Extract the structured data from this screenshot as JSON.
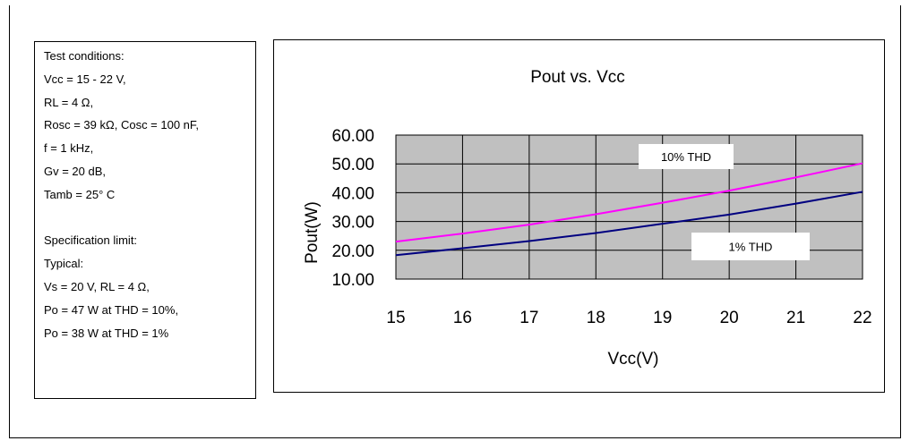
{
  "conditions": {
    "lines": [
      "Test conditions:",
      "Vcc = 15 - 22 V,",
      "RL = 4 Ω,",
      "Rosc = 39 kΩ, Cosc = 100 nF,",
      "f = 1 kHz,",
      "Gv = 20 dB,",
      "Tamb = 25° C",
      "",
      "Specification limit:",
      "Typical:",
      "Vs = 20 V, RL = 4 Ω,",
      "Po = 47 W at THD = 10%,",
      "Po = 38 W at THD = 1%"
    ]
  },
  "chart_data": {
    "type": "line",
    "title": "Pout vs. Vcc",
    "xlabel": "Vcc(V)",
    "ylabel": "Pout(W)",
    "xlim": [
      15,
      22
    ],
    "ylim": [
      10,
      60
    ],
    "x_ticks": [
      "15",
      "16",
      "17",
      "18",
      "19",
      "20",
      "21",
      "22"
    ],
    "y_ticks": [
      "10.00",
      "20.00",
      "30.00",
      "40.00",
      "50.00",
      "60.00"
    ],
    "grid": true,
    "plot_background": "#c0c0c0",
    "x": [
      15,
      16,
      17,
      18,
      19,
      20,
      21,
      22
    ],
    "series": [
      {
        "name": "10% THD",
        "color": "#ff00ff",
        "values": [
          23.0,
          25.8,
          28.9,
          32.5,
          36.5,
          40.7,
          45.3,
          50.2
        ]
      },
      {
        "name": "1% THD",
        "color": "#000080",
        "values": [
          18.3,
          20.7,
          23.2,
          26.0,
          29.2,
          32.4,
          36.2,
          40.3
        ]
      }
    ]
  }
}
